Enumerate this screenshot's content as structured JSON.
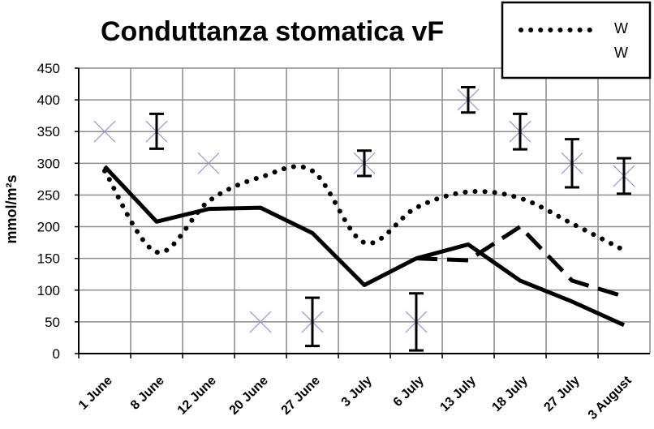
{
  "chart_data": {
    "type": "line",
    "title": "Conduttanza stomatica  vF",
    "xlabel": "",
    "ylabel": "mmol/m²s",
    "ylim": [
      0,
      450
    ],
    "yticks": [
      "0",
      "50",
      "100",
      "150",
      "200",
      "250",
      "300",
      "350",
      "400",
      "450"
    ],
    "categories": [
      "1 June",
      "8 June",
      "12 June",
      "20 June",
      "27 June",
      "3 July",
      "6 July",
      "13 July",
      "18 July",
      "27 July",
      "3 August"
    ],
    "grid": true,
    "legend_position": "top-right",
    "legend": [
      "W",
      "W"
    ],
    "series": [
      {
        "name": "W",
        "style": "dotted",
        "color": "#000000",
        "points": [
          [
            0,
            288
          ],
          [
            1,
            160
          ],
          [
            2,
            240
          ],
          [
            3,
            278
          ],
          [
            4,
            288
          ],
          [
            5,
            175
          ],
          [
            6,
            230
          ],
          [
            7,
            255
          ],
          [
            8,
            245
          ],
          [
            9,
            205
          ],
          [
            10,
            163
          ]
        ]
      },
      {
        "name": "W",
        "style": "solid",
        "color": "#000000",
        "points": [
          [
            0,
            295
          ],
          [
            1,
            208
          ],
          [
            2,
            228
          ],
          [
            3,
            230
          ],
          [
            4,
            190
          ],
          [
            5,
            108
          ],
          [
            6,
            150
          ],
          [
            7,
            172
          ],
          [
            8,
            115
          ],
          [
            9,
            82
          ],
          [
            10,
            45
          ]
        ]
      },
      {
        "style": "dashed",
        "color": "#000000",
        "points": [
          [
            6,
            150
          ],
          [
            7,
            147
          ],
          [
            8,
            200
          ],
          [
            9,
            115
          ],
          [
            10,
            90
          ]
        ]
      },
      {
        "style": "cross",
        "color": "#9a9ac0",
        "points": [
          [
            0,
            350
          ],
          [
            1,
            350
          ],
          [
            2,
            300
          ],
          [
            3,
            50
          ],
          [
            4,
            50
          ],
          [
            5,
            300
          ],
          [
            6,
            50
          ],
          [
            7,
            400
          ],
          [
            8,
            350
          ],
          [
            9,
            300
          ],
          [
            10,
            280
          ]
        ]
      }
    ],
    "error_bars": [
      {
        "x": 1,
        "low": 323,
        "high": 378
      },
      {
        "x": 4,
        "low": 12,
        "high": 88
      },
      {
        "x": 5,
        "low": 280,
        "high": 320
      },
      {
        "x": 6,
        "low": 5,
        "high": 95
      },
      {
        "x": 7,
        "low": 380,
        "high": 420
      },
      {
        "x": 8,
        "low": 322,
        "high": 378
      },
      {
        "x": 9,
        "low": 262,
        "high": 338
      },
      {
        "x": 10,
        "low": 252,
        "high": 308
      }
    ]
  }
}
